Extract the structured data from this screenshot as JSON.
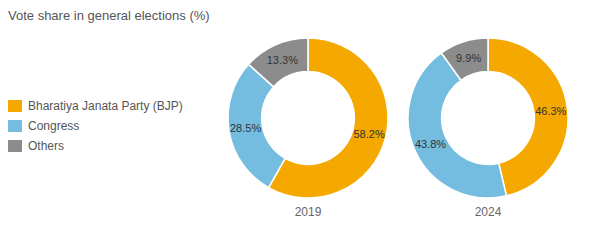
{
  "chart_data": {
    "type": "pie",
    "title": "Vote share in general elections (%)",
    "categories": [
      "Bharatiya Janata Party (BJP)",
      "Congress",
      "Others"
    ],
    "colors": [
      "#F5A800",
      "#74BDE0",
      "#8C8C8C"
    ],
    "series": [
      {
        "name": "2019",
        "values": [
          58.2,
          28.5,
          13.3
        ],
        "value_labels": [
          "58.2%",
          "28.5%",
          "13.3%"
        ]
      },
      {
        "name": "2024",
        "values": [
          46.3,
          43.8,
          9.9
        ],
        "value_labels": [
          "46.3%",
          "43.8%",
          "9.9%"
        ]
      }
    ],
    "data_labels": true,
    "legend": "left"
  }
}
